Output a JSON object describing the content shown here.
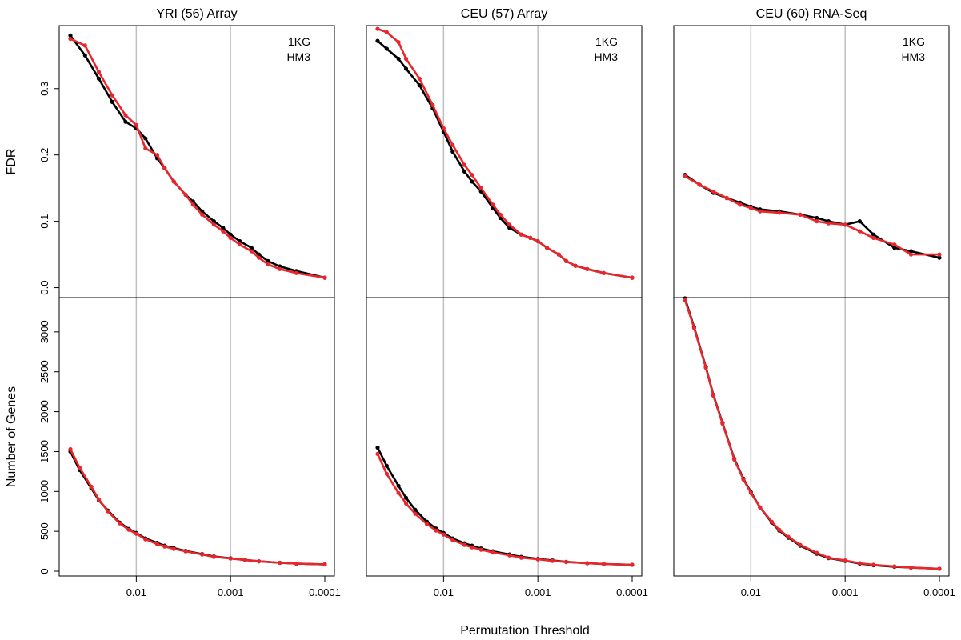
{
  "figure": {
    "x_axis_title": "Permutation Threshold",
    "top_y_label": "FDR",
    "bottom_y_label": "Number of Genes",
    "legend": [
      "1KG",
      "HM3"
    ],
    "colors": {
      "1KG": "#e8262b",
      "HM3": "#000000",
      "grid": "#bfbfbf"
    },
    "x_ticks": [
      {
        "value": 0.01,
        "label": "0.01"
      },
      {
        "value": 0.001,
        "label": "0.001"
      },
      {
        "value": 0.0001,
        "label": "0.0001"
      }
    ],
    "fdr_ticks": [
      {
        "value": 0,
        "label": "0.0"
      },
      {
        "value": 0.1,
        "label": "0.1"
      },
      {
        "value": 0.2,
        "label": "0.2"
      },
      {
        "value": 0.3,
        "label": "0.3"
      }
    ],
    "genes_ticks": [
      {
        "value": 0,
        "label": "0"
      },
      {
        "value": 500,
        "label": "500"
      },
      {
        "value": 1000,
        "label": "1000"
      },
      {
        "value": 1500,
        "label": "1500"
      },
      {
        "value": 2000,
        "label": "2000"
      },
      {
        "value": 2500,
        "label": "2500"
      },
      {
        "value": 3000,
        "label": "3000"
      }
    ]
  },
  "chart_data": [
    {
      "type": "line",
      "panel": "YRI (56) Array",
      "metric": "FDR",
      "title": "YRI (56) Array",
      "x_scale": "log10 (reversed)",
      "xlim": [
        0.05,
        0.0001
      ],
      "ylim": [
        -0.015,
        0.395
      ],
      "series": [
        {
          "name": "1KG",
          "x": [
            0.05,
            0.035,
            0.025,
            0.018,
            0.013,
            0.01,
            0.008,
            0.006,
            0.005,
            0.004,
            0.003,
            0.0025,
            0.002,
            0.0015,
            0.0012,
            0.001,
            0.0008,
            0.0006,
            0.0005,
            0.0004,
            0.0003,
            0.0002,
            0.0001
          ],
          "y": [
            0.375,
            0.365,
            0.325,
            0.29,
            0.26,
            0.245,
            0.21,
            0.2,
            0.18,
            0.16,
            0.14,
            0.125,
            0.11,
            0.095,
            0.085,
            0.075,
            0.065,
            0.055,
            0.045,
            0.035,
            0.028,
            0.022,
            0.015
          ]
        },
        {
          "name": "HM3",
          "x": [
            0.05,
            0.035,
            0.025,
            0.018,
            0.013,
            0.01,
            0.008,
            0.006,
            0.005,
            0.004,
            0.003,
            0.0025,
            0.002,
            0.0015,
            0.0012,
            0.001,
            0.0008,
            0.0006,
            0.0005,
            0.0004,
            0.0003,
            0.0002,
            0.0001
          ],
          "y": [
            0.38,
            0.35,
            0.315,
            0.28,
            0.25,
            0.24,
            0.225,
            0.195,
            0.18,
            0.16,
            0.14,
            0.13,
            0.115,
            0.1,
            0.09,
            0.08,
            0.07,
            0.06,
            0.05,
            0.04,
            0.032,
            0.025,
            0.015
          ]
        }
      ]
    },
    {
      "type": "line",
      "panel": "CEU (57) Array",
      "metric": "FDR",
      "title": "CEU (57) Array",
      "x_scale": "log10 (reversed)",
      "xlim": [
        0.05,
        0.0001
      ],
      "ylim": [
        -0.015,
        0.395
      ],
      "series": [
        {
          "name": "1KG",
          "x": [
            0.05,
            0.04,
            0.03,
            0.025,
            0.018,
            0.013,
            0.01,
            0.008,
            0.006,
            0.005,
            0.004,
            0.003,
            0.0025,
            0.002,
            0.0015,
            0.0012,
            0.001,
            0.0008,
            0.0006,
            0.0005,
            0.0004,
            0.0003,
            0.0002,
            0.0001
          ],
          "y": [
            0.39,
            0.385,
            0.37,
            0.345,
            0.315,
            0.275,
            0.24,
            0.215,
            0.185,
            0.17,
            0.15,
            0.125,
            0.11,
            0.095,
            0.08,
            0.075,
            0.07,
            0.06,
            0.05,
            0.04,
            0.033,
            0.028,
            0.022,
            0.015
          ]
        },
        {
          "name": "HM3",
          "x": [
            0.05,
            0.04,
            0.03,
            0.025,
            0.018,
            0.013,
            0.01,
            0.008,
            0.006,
            0.005,
            0.004,
            0.003,
            0.0025,
            0.002,
            0.0015,
            0.0012,
            0.001,
            0.0008,
            0.0006,
            0.0005,
            0.0004,
            0.0003,
            0.0002,
            0.0001
          ],
          "y": [
            0.372,
            0.36,
            0.345,
            0.33,
            0.305,
            0.27,
            0.235,
            0.205,
            0.175,
            0.16,
            0.145,
            0.12,
            0.105,
            0.09,
            0.08,
            0.075,
            0.07,
            0.06,
            0.05,
            0.04,
            0.033,
            0.028,
            0.022,
            0.015
          ]
        }
      ]
    },
    {
      "type": "line",
      "panel": "CEU (60) RNA-Seq",
      "metric": "FDR",
      "title": "CEU (60) RNA-Seq",
      "x_scale": "log10 (reversed)",
      "xlim": [
        0.05,
        0.0001
      ],
      "ylim": [
        -0.015,
        0.395
      ],
      "series": [
        {
          "name": "1KG",
          "x": [
            0.05,
            0.035,
            0.025,
            0.018,
            0.013,
            0.01,
            0.008,
            0.005,
            0.003,
            0.002,
            0.0015,
            0.001,
            0.0007,
            0.0005,
            0.0003,
            0.0002,
            0.0001
          ],
          "y": [
            0.168,
            0.155,
            0.145,
            0.135,
            0.125,
            0.12,
            0.115,
            0.113,
            0.11,
            0.1,
            0.097,
            0.095,
            0.085,
            0.075,
            0.065,
            0.05,
            0.05
          ]
        },
        {
          "name": "HM3",
          "x": [
            0.05,
            0.035,
            0.025,
            0.018,
            0.013,
            0.01,
            0.008,
            0.005,
            0.003,
            0.002,
            0.0015,
            0.001,
            0.0007,
            0.0005,
            0.0003,
            0.0002,
            0.0001
          ],
          "y": [
            0.17,
            0.155,
            0.143,
            0.135,
            0.128,
            0.122,
            0.118,
            0.115,
            0.11,
            0.105,
            0.1,
            0.095,
            0.1,
            0.08,
            0.06,
            0.055,
            0.045
          ]
        }
      ]
    },
    {
      "type": "line",
      "panel": "YRI (56) Array",
      "metric": "Number of Genes",
      "x_scale": "log10 (reversed)",
      "xlim": [
        0.05,
        0.0001
      ],
      "ylim": [
        -60,
        3430
      ],
      "series": [
        {
          "name": "1KG",
          "x": [
            0.05,
            0.04,
            0.03,
            0.025,
            0.02,
            0.015,
            0.012,
            0.01,
            0.008,
            0.006,
            0.005,
            0.004,
            0.003,
            0.002,
            0.0015,
            0.001,
            0.0007,
            0.0005,
            0.0003,
            0.0002,
            0.0001
          ],
          "y": [
            1530,
            1300,
            1060,
            900,
            750,
            600,
            520,
            470,
            400,
            340,
            310,
            280,
            250,
            210,
            180,
            160,
            140,
            125,
            105,
            95,
            85
          ]
        },
        {
          "name": "HM3",
          "x": [
            0.05,
            0.04,
            0.03,
            0.025,
            0.02,
            0.015,
            0.012,
            0.01,
            0.008,
            0.006,
            0.005,
            0.004,
            0.003,
            0.002,
            0.0015,
            0.001,
            0.0007,
            0.0005,
            0.0003,
            0.0002,
            0.0001
          ],
          "y": [
            1500,
            1270,
            1040,
            890,
            760,
            610,
            530,
            480,
            410,
            355,
            320,
            290,
            255,
            215,
            185,
            162,
            142,
            125,
            105,
            95,
            85
          ]
        }
      ]
    },
    {
      "type": "line",
      "panel": "CEU (57) Array",
      "metric": "Number of Genes",
      "x_scale": "log10 (reversed)",
      "xlim": [
        0.05,
        0.0001
      ],
      "ylim": [
        -60,
        3430
      ],
      "series": [
        {
          "name": "1KG",
          "x": [
            0.05,
            0.04,
            0.03,
            0.025,
            0.02,
            0.015,
            0.012,
            0.01,
            0.008,
            0.006,
            0.005,
            0.004,
            0.003,
            0.002,
            0.0015,
            0.001,
            0.0007,
            0.0005,
            0.0003,
            0.0002,
            0.0001
          ],
          "y": [
            1470,
            1220,
            980,
            850,
            720,
            590,
            510,
            460,
            390,
            330,
            300,
            270,
            235,
            200,
            170,
            150,
            130,
            115,
            100,
            90,
            80
          ]
        },
        {
          "name": "HM3",
          "x": [
            0.05,
            0.04,
            0.03,
            0.025,
            0.02,
            0.015,
            0.012,
            0.01,
            0.008,
            0.006,
            0.005,
            0.004,
            0.003,
            0.002,
            0.0015,
            0.001,
            0.0007,
            0.0005,
            0.0003,
            0.0002,
            0.0001
          ],
          "y": [
            1550,
            1320,
            1070,
            920,
            770,
            620,
            535,
            480,
            410,
            350,
            320,
            285,
            250,
            210,
            180,
            155,
            135,
            118,
            100,
            90,
            80
          ]
        }
      ]
    },
    {
      "type": "line",
      "panel": "CEU (60) RNA-Seq",
      "metric": "Number of Genes",
      "x_scale": "log10 (reversed)",
      "xlim": [
        0.05,
        0.0001
      ],
      "ylim": [
        -60,
        3430
      ],
      "series": [
        {
          "name": "1KG",
          "x": [
            0.05,
            0.04,
            0.03,
            0.025,
            0.02,
            0.015,
            0.012,
            0.01,
            0.008,
            0.006,
            0.005,
            0.004,
            0.003,
            0.002,
            0.0015,
            0.001,
            0.0007,
            0.0005,
            0.0003,
            0.0002,
            0.0001
          ],
          "y": [
            3400,
            3050,
            2550,
            2200,
            1850,
            1400,
            1150,
            980,
            800,
            620,
            520,
            430,
            330,
            230,
            170,
            135,
            100,
            80,
            60,
            45,
            30
          ]
        },
        {
          "name": "HM3",
          "x": [
            0.05,
            0.04,
            0.03,
            0.025,
            0.02,
            0.015,
            0.012,
            0.01,
            0.008,
            0.006,
            0.005,
            0.004,
            0.003,
            0.002,
            0.0015,
            0.001,
            0.0007,
            0.0005,
            0.0003,
            0.0002,
            0.0001
          ],
          "y": [
            3420,
            3060,
            2560,
            2210,
            1860,
            1410,
            1160,
            990,
            800,
            610,
            510,
            420,
            320,
            220,
            165,
            130,
            95,
            75,
            55,
            45,
            30
          ]
        }
      ]
    }
  ]
}
